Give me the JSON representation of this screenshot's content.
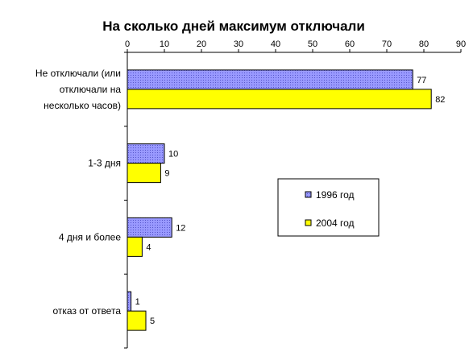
{
  "chart_data": {
    "type": "bar",
    "orientation": "horizontal",
    "title": "На сколько дней максимум отключали",
    "categories": [
      [
        "Не отключали (или",
        "отключали на",
        "несколько часов)"
      ],
      [
        "1-3 дня"
      ],
      [
        "4 дня и более"
      ],
      [
        "отказ от ответа"
      ]
    ],
    "series": [
      {
        "name": "1996 год",
        "values": [
          77,
          10,
          12,
          1
        ],
        "color": "#9999ff",
        "pattern": "dots"
      },
      {
        "name": "2004 год",
        "values": [
          82,
          9,
          4,
          5
        ],
        "color": "#ffff00"
      }
    ],
    "xlim": [
      0,
      90
    ],
    "xticks": [
      0,
      10,
      20,
      30,
      40,
      50,
      60,
      70,
      80,
      90
    ],
    "xaxis_position": "top",
    "grid": false,
    "legend": {
      "position": "right",
      "items": [
        "1996 год",
        "2004 год"
      ]
    },
    "data_labels": true
  }
}
